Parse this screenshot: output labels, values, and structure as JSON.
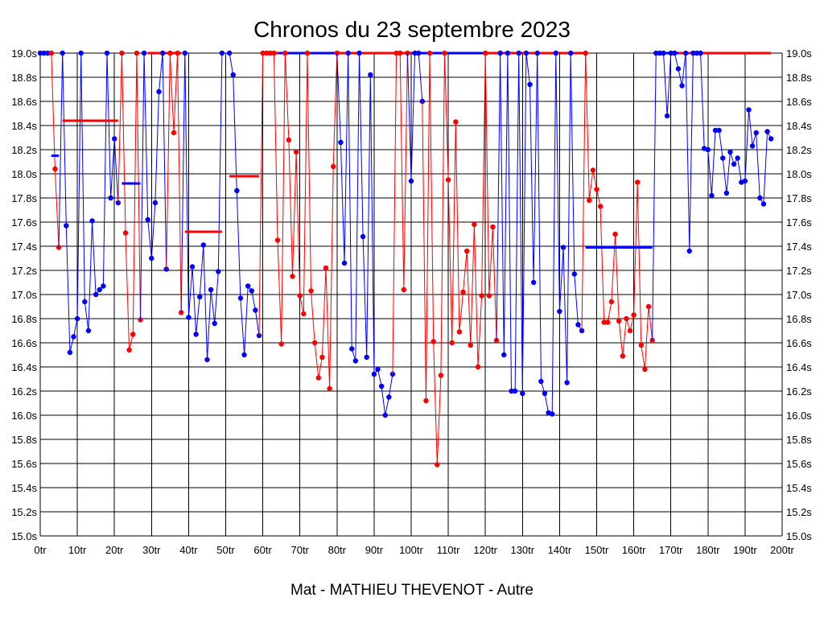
{
  "chart_data": {
    "type": "line",
    "title": "Chronos du 23 septembre 2023",
    "subtitle": "Mat - MATHIEU THEVENOT - Autre",
    "xlabel": "",
    "ylabel": "",
    "xlim": [
      0,
      200
    ],
    "ylim": [
      15.0,
      19.0
    ],
    "x_ticks": [
      0,
      10,
      20,
      30,
      40,
      50,
      60,
      70,
      80,
      90,
      100,
      110,
      120,
      130,
      140,
      150,
      160,
      170,
      180,
      190,
      200
    ],
    "x_tick_labels": [
      "0tr",
      "10tr",
      "20tr",
      "30tr",
      "40tr",
      "50tr",
      "60tr",
      "70tr",
      "80tr",
      "90tr",
      "100tr",
      "110tr",
      "120tr",
      "130tr",
      "140tr",
      "150tr",
      "160tr",
      "170tr",
      "180tr",
      "190tr",
      "200tr"
    ],
    "y_ticks": [
      15.0,
      15.2,
      15.4,
      15.6,
      15.8,
      16.0,
      16.2,
      16.4,
      16.6,
      16.8,
      17.0,
      17.2,
      17.4,
      17.6,
      17.8,
      18.0,
      18.2,
      18.4,
      18.6,
      18.8,
      19.0
    ],
    "y_tick_labels": [
      "15.0s",
      "15.2s",
      "15.4s",
      "15.6s",
      "15.8s",
      "16.0s",
      "16.2s",
      "16.4s",
      "16.6s",
      "16.8s",
      "17.0s",
      "17.2s",
      "17.4s",
      "17.6s",
      "17.8s",
      "18.0s",
      "18.2s",
      "18.4s",
      "18.6s",
      "18.8s",
      "19.0s"
    ],
    "grid": true,
    "legend": "none",
    "colors": {
      "red": "#ff0000",
      "blue": "#0000ff",
      "axis": "#000000",
      "background": "#ffffff"
    },
    "series": [
      {
        "color": "#0000ff",
        "points": [
          [
            0,
            19.0
          ],
          [
            1,
            19.0
          ],
          [
            2,
            19.0
          ]
        ]
      },
      {
        "color": "#ff0000",
        "points": [
          [
            3,
            19.0
          ],
          [
            4,
            18.04
          ],
          [
            5,
            17.39
          ]
        ]
      },
      {
        "color": "#0000ff",
        "points": [
          [
            6,
            19.0
          ],
          [
            7,
            17.57
          ],
          [
            8,
            16.52
          ],
          [
            9,
            16.65
          ],
          [
            10,
            16.8
          ],
          [
            11,
            19.0
          ],
          [
            12,
            16.94
          ],
          [
            13,
            16.7
          ],
          [
            14,
            17.61
          ],
          [
            15,
            17.0
          ],
          [
            16,
            17.04
          ],
          [
            17,
            17.07
          ],
          [
            18,
            19.0
          ],
          [
            19,
            17.8
          ],
          [
            20,
            18.29
          ],
          [
            21,
            17.76
          ]
        ]
      },
      {
        "color": "#ff0000",
        "points": [
          [
            22,
            19.0
          ],
          [
            23,
            17.51
          ],
          [
            24,
            16.54
          ],
          [
            25,
            16.67
          ],
          [
            26,
            19.0
          ],
          [
            27,
            16.79
          ]
        ]
      },
      {
        "color": "#0000ff",
        "points": [
          [
            28,
            19.0
          ],
          [
            29,
            17.62
          ],
          [
            30,
            17.3
          ],
          [
            31,
            17.76
          ],
          [
            32,
            18.68
          ],
          [
            33,
            19.0
          ],
          [
            34,
            17.21
          ]
        ]
      },
      {
        "color": "#ff0000",
        "points": [
          [
            35,
            19.0
          ],
          [
            36,
            18.34
          ],
          [
            37,
            19.0
          ],
          [
            38,
            16.85
          ]
        ]
      },
      {
        "color": "#0000ff",
        "points": [
          [
            39,
            19.0
          ],
          [
            40,
            16.81
          ],
          [
            41,
            17.23
          ],
          [
            42,
            16.67
          ],
          [
            43,
            16.98
          ],
          [
            44,
            17.41
          ],
          [
            45,
            16.46
          ],
          [
            46,
            17.04
          ],
          [
            47,
            16.76
          ],
          [
            48,
            17.19
          ],
          [
            49,
            19.0
          ],
          [
            51,
            19.0
          ],
          [
            52,
            18.82
          ],
          [
            53,
            17.86
          ],
          [
            54,
            16.97
          ],
          [
            55,
            16.5
          ],
          [
            56,
            17.07
          ],
          [
            57,
            17.03
          ],
          [
            58,
            16.87
          ],
          [
            59,
            16.66
          ]
        ]
      },
      {
        "color": "#ff0000",
        "points": [
          [
            60,
            19.0
          ],
          [
            61,
            19.0
          ],
          [
            62,
            19.0
          ],
          [
            63,
            19.0
          ],
          [
            64,
            17.45
          ],
          [
            65,
            16.59
          ],
          [
            66,
            19.0
          ],
          [
            67,
            18.28
          ],
          [
            68,
            17.15
          ],
          [
            69,
            18.18
          ],
          [
            70,
            16.99
          ],
          [
            71,
            16.84
          ],
          [
            72,
            19.0
          ],
          [
            73,
            17.03
          ],
          [
            74,
            16.6
          ],
          [
            75,
            16.31
          ],
          [
            76,
            16.48
          ],
          [
            77,
            17.22
          ],
          [
            78,
            16.22
          ],
          [
            79,
            18.06
          ],
          [
            80,
            19.0
          ]
        ]
      },
      {
        "color": "#0000ff",
        "points": [
          [
            81,
            18.26
          ],
          [
            82,
            17.26
          ],
          [
            83,
            19.0
          ],
          [
            84,
            16.55
          ],
          [
            85,
            16.45
          ],
          [
            86,
            19.0
          ],
          [
            87,
            17.48
          ],
          [
            88,
            16.48
          ],
          [
            89,
            18.82
          ],
          [
            90,
            16.34
          ],
          [
            91,
            16.38
          ],
          [
            92,
            16.24
          ],
          [
            93,
            16.0
          ],
          [
            94,
            16.15
          ],
          [
            95,
            16.34
          ]
        ]
      },
      {
        "color": "#ff0000",
        "points": [
          [
            96,
            19.0
          ],
          [
            97,
            19.0
          ],
          [
            98,
            17.04
          ],
          [
            99,
            19.0
          ]
        ]
      },
      {
        "color": "#0000ff",
        "points": [
          [
            100,
            17.94
          ],
          [
            101,
            19.0
          ],
          [
            102,
            19.0
          ],
          [
            103,
            18.6
          ]
        ]
      },
      {
        "color": "#ff0000",
        "points": [
          [
            104,
            16.12
          ],
          [
            105,
            19.0
          ],
          [
            106,
            16.61
          ],
          [
            107,
            15.59
          ],
          [
            108,
            16.33
          ],
          [
            109,
            19.0
          ],
          [
            110,
            17.95
          ],
          [
            111,
            16.6
          ],
          [
            112,
            18.43
          ],
          [
            113,
            16.69
          ],
          [
            114,
            17.02
          ],
          [
            115,
            17.36
          ],
          [
            116,
            16.58
          ],
          [
            117,
            17.58
          ],
          [
            118,
            16.4
          ],
          [
            119,
            16.99
          ],
          [
            120,
            19.0
          ],
          [
            121,
            16.99
          ],
          [
            122,
            17.56
          ],
          [
            123,
            16.62
          ]
        ]
      },
      {
        "color": "#0000ff",
        "points": [
          [
            124,
            19.0
          ],
          [
            125,
            16.5
          ],
          [
            126,
            19.0
          ],
          [
            127,
            16.2
          ],
          [
            128,
            16.2
          ],
          [
            129,
            19.0
          ],
          [
            130,
            16.18
          ],
          [
            131,
            19.0
          ],
          [
            132,
            18.74
          ],
          [
            133,
            17.1
          ],
          [
            134,
            19.0
          ],
          [
            135,
            16.28
          ],
          [
            136,
            16.18
          ],
          [
            137,
            16.02
          ],
          [
            138,
            16.01
          ],
          [
            139,
            19.0
          ],
          [
            140,
            16.86
          ],
          [
            141,
            17.39
          ],
          [
            142,
            16.27
          ],
          [
            143,
            19.0
          ],
          [
            144,
            17.17
          ],
          [
            145,
            16.75
          ],
          [
            146,
            16.7
          ]
        ]
      },
      {
        "color": "#ff0000",
        "points": [
          [
            147,
            19.0
          ],
          [
            148,
            17.78
          ],
          [
            149,
            18.03
          ],
          [
            150,
            17.87
          ],
          [
            151,
            17.73
          ],
          [
            152,
            16.77
          ],
          [
            153,
            16.77
          ],
          [
            154,
            16.94
          ],
          [
            155,
            17.5
          ],
          [
            156,
            16.78
          ],
          [
            157,
            16.49
          ],
          [
            158,
            16.8
          ],
          [
            159,
            16.7
          ],
          [
            160,
            16.83
          ],
          [
            161,
            17.93
          ],
          [
            162,
            16.58
          ],
          [
            163,
            16.38
          ],
          [
            164,
            16.9
          ],
          [
            165,
            16.62
          ]
        ]
      },
      {
        "color": "#0000ff",
        "points": [
          [
            166,
            19.0
          ],
          [
            167,
            19.0
          ],
          [
            168,
            19.0
          ],
          [
            169,
            18.48
          ],
          [
            170,
            19.0
          ],
          [
            171,
            19.0
          ],
          [
            172,
            18.87
          ],
          [
            173,
            18.73
          ],
          [
            174,
            19.0
          ],
          [
            175,
            17.36
          ],
          [
            176,
            19.0
          ],
          [
            177,
            19.0
          ],
          [
            178,
            19.0
          ],
          [
            179,
            18.21
          ],
          [
            180,
            18.2
          ],
          [
            181,
            17.82
          ],
          [
            182,
            18.36
          ],
          [
            183,
            18.36
          ],
          [
            184,
            18.13
          ],
          [
            185,
            17.84
          ],
          [
            186,
            18.18
          ],
          [
            187,
            18.08
          ],
          [
            188,
            18.13
          ],
          [
            189,
            17.93
          ],
          [
            190,
            17.94
          ],
          [
            191,
            18.53
          ],
          [
            192,
            18.23
          ],
          [
            193,
            18.34
          ],
          [
            194,
            17.8
          ],
          [
            195,
            17.75
          ],
          [
            196,
            18.35
          ],
          [
            197,
            18.29
          ]
        ]
      }
    ],
    "red_segments": [
      [
        38,
        40
      ],
      [
        120,
        121
      ],
      [
        122,
        123
      ]
    ],
    "averages": [
      {
        "color": "#0000ff",
        "x_start": 3,
        "x_end": 5,
        "value": 18.15
      },
      {
        "color": "#ff0000",
        "x_start": 6,
        "x_end": 21,
        "value": 18.44
      },
      {
        "color": "#0000ff",
        "x_start": 22,
        "x_end": 27,
        "value": 17.92
      },
      {
        "color": "#ff0000",
        "x_start": 39,
        "x_end": 49,
        "value": 17.52
      },
      {
        "color": "#ff0000",
        "x_start": 51,
        "x_end": 59,
        "value": 17.98
      },
      {
        "color": "#0000ff",
        "x_start": 147,
        "x_end": 165,
        "value": 17.39
      }
    ],
    "top_lines": [
      {
        "color": "#ff0000",
        "x_start": 29,
        "x_end": 38
      },
      {
        "color": "#ff0000",
        "x_start": 60,
        "x_end": 64
      },
      {
        "color": "#0000ff",
        "x_start": 64,
        "x_end": 80
      },
      {
        "color": "#ff0000",
        "x_start": 80,
        "x_end": 100
      },
      {
        "color": "#0000ff",
        "x_start": 100,
        "x_end": 120
      },
      {
        "color": "#ff0000",
        "x_start": 120,
        "x_end": 147
      },
      {
        "color": "#0000ff",
        "x_start": 166,
        "x_end": 172
      },
      {
        "color": "#ff0000",
        "x_start": 172,
        "x_end": 197
      }
    ]
  }
}
